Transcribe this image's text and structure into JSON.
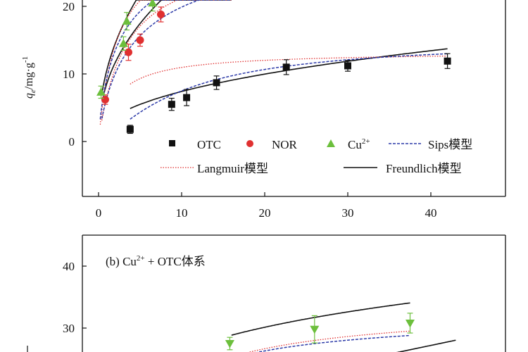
{
  "chart_data": [
    {
      "type": "scatter",
      "ylabel_main": "q",
      "ylabel_sub": "e",
      "ylabel_unit": "/mg·g",
      "ylabel_exp": "-1",
      "xlim": [
        -1,
        49
      ],
      "ylim": [
        -8,
        20.5
      ],
      "xticks": [
        0,
        10,
        20,
        30,
        40
      ],
      "yticks": [
        0,
        10,
        20
      ],
      "series": [
        {
          "name": "OTC",
          "color": "#111111",
          "marker": "square",
          "x": [
            3.8,
            8.8,
            10.6,
            14.2,
            22.6,
            30.0,
            42.0
          ],
          "y": [
            1.8,
            5.5,
            6.5,
            8.7,
            11.0,
            11.2,
            11.9
          ],
          "err": [
            0.6,
            0.9,
            1.2,
            1.0,
            1.1,
            0.8,
            1.1
          ]
        },
        {
          "name": "NOR",
          "color": "#e03030",
          "marker": "circle",
          "x": [
            0.8,
            3.6,
            5.0,
            7.5
          ],
          "y": [
            6.2,
            13.2,
            15.0,
            18.8
          ],
          "err": [
            0.7,
            1.2,
            0.9,
            1.1
          ]
        },
        {
          "name": "Cu2+",
          "color": "#6cbf3c",
          "marker": "triangle-up",
          "x": [
            0.3,
            3.0,
            3.4,
            6.5
          ],
          "y": [
            7.3,
            14.5,
            17.8,
            20.5
          ],
          "err": [
            0.9,
            1.0,
            1.3,
            1.2
          ]
        }
      ],
      "legend": [
        {
          "key": "otc",
          "label": "OTC"
        },
        {
          "key": "nor",
          "label": "NOR"
        },
        {
          "key": "cu",
          "label": "Cu",
          "sup": "2+"
        },
        {
          "key": "sips",
          "label": "Sips模型"
        },
        {
          "key": "lang",
          "label": "Langmuir模型"
        },
        {
          "key": "freund",
          "label": "Freundlich模型"
        }
      ]
    },
    {
      "type": "scatter",
      "annotation_prefix": "(b) Cu",
      "annotation_sup": "2+",
      "annotation_suffix": " + OTC体系",
      "xlim": [
        -1,
        49
      ],
      "ylim": [
        26,
        45
      ],
      "yticks": [
        30,
        40
      ],
      "series": [
        {
          "name": "Cu2+",
          "color": "#6cbf3c",
          "marker": "triangle-down",
          "x": [
            15.8,
            26.0,
            37.5
          ],
          "y": [
            27.5,
            29.8,
            30.8
          ],
          "err": [
            1.0,
            2.2,
            1.6
          ]
        }
      ]
    }
  ]
}
